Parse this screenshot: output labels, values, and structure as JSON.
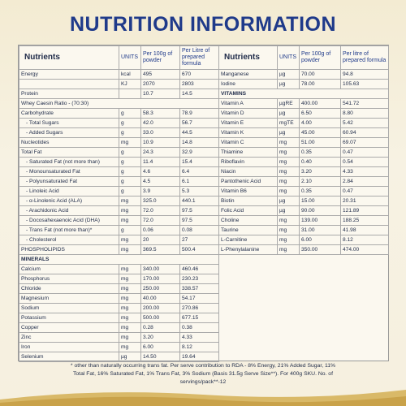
{
  "header": {
    "title": "NUTRITION INFORMATION"
  },
  "table_left": {
    "columns": [
      "Nutrients",
      "UNITS",
      "Per 100g of powder",
      "Per Litre of prepared formula"
    ],
    "rows": [
      {
        "cells": [
          "Energy",
          "kcal",
          "495",
          "670"
        ]
      },
      {
        "cells": [
          null,
          "KJ",
          "2070",
          "2803"
        ]
      },
      {
        "cells": [
          "Protein",
          null,
          "10.7",
          "14.5"
        ]
      },
      {
        "cells": [
          "Whey Caesin Ratio - (70:30)"
        ]
      },
      {
        "cells": [
          "Carbohydrate",
          "g",
          "58.3",
          "78.9"
        ]
      },
      {
        "cells": [
          "- Total Sugars",
          "g",
          "42.0",
          "56.7"
        ]
      },
      {
        "cells": [
          "- Added Sugars",
          "g",
          "33.0",
          "44.5"
        ]
      },
      {
        "cells": [
          "Nucleotides",
          "mg",
          "10.9",
          "14.8"
        ]
      },
      {
        "cells": [
          "Total Fat",
          "g",
          "24.3",
          "32.9"
        ]
      },
      {
        "cells": [
          "- Saturated Fat (not more than)",
          "g",
          "11.4",
          "15.4"
        ]
      },
      {
        "cells": [
          "- Monounsaturated Fat",
          "g",
          "4.6",
          "6.4"
        ]
      },
      {
        "cells": [
          "- Polyunsaturated Fat",
          "g",
          "4.5",
          "6.1"
        ]
      },
      {
        "cells": [
          "- Linoleic Acid",
          "g",
          "3.9",
          "5.3"
        ]
      },
      {
        "cells": [
          "- α-Linolenic Acid (ALA)",
          "mg",
          "325.0",
          "440.1"
        ]
      },
      {
        "cells": [
          "- Arachidonic Acid",
          "mg",
          "72.0",
          "97.5"
        ]
      },
      {
        "cells": [
          "- Docosahexaenoic Acid (DHA)",
          "mg",
          "72.0",
          "97.5"
        ]
      },
      {
        "cells": [
          "- Trans Fat (not more than)*",
          "g",
          "0.06",
          "0.08"
        ]
      },
      {
        "cells": [
          "- Cholesterol",
          "mg",
          "20",
          "27"
        ]
      },
      {
        "cells": [
          "PHOSPHOLIPIDS",
          "mg",
          "369.5",
          "500.4"
        ]
      },
      {
        "cells": [
          "MINERALS"
        ],
        "heading": true
      },
      {
        "cells": [
          "Calcium",
          "mg",
          "340.00",
          "460.46"
        ]
      },
      {
        "cells": [
          "Phosphorus",
          "mg",
          "170.00",
          "230.23"
        ]
      },
      {
        "cells": [
          "Chloride",
          "mg",
          "250.00",
          "338.57"
        ]
      },
      {
        "cells": [
          "Magnesium",
          "mg",
          "40.00",
          "54.17"
        ]
      },
      {
        "cells": [
          "Sodium",
          "mg",
          "200.00",
          "270.86"
        ]
      },
      {
        "cells": [
          "Potassium",
          "mg",
          "500.00",
          "677.15"
        ]
      },
      {
        "cells": [
          "Copper",
          "mg",
          "0.28",
          "0.38"
        ]
      },
      {
        "cells": [
          "Zinc",
          "mg",
          "3.20",
          "4.33"
        ]
      },
      {
        "cells": [
          "Iron",
          "mg",
          "6.00",
          "8.12"
        ]
      },
      {
        "cells": [
          "Selenium",
          "µg",
          "14.50",
          "19.64"
        ]
      }
    ]
  },
  "table_right": {
    "columns": [
      "Nutrients",
      "UNITS",
      "Per 100g of powder",
      "Per litre of prepared formula"
    ],
    "rows": [
      {
        "cells": [
          "Manganese",
          "µg",
          "70.00",
          "94.8"
        ]
      },
      {
        "cells": [
          "Iodine",
          "µg",
          "78.00",
          "105.63"
        ]
      },
      {
        "cells": [
          "VITAMINS"
        ],
        "heading": true
      },
      {
        "cells": [
          "Vitamin A",
          "µgRE",
          "400.00",
          "541.72"
        ]
      },
      {
        "cells": [
          "Vitamin D",
          "µg",
          "6.50",
          "8.80"
        ]
      },
      {
        "cells": [
          "Vitamin E",
          "mgTE",
          "4.00",
          "5.42"
        ]
      },
      {
        "cells": [
          "Vitamin K",
          "µg",
          "45.00",
          "60.94"
        ]
      },
      {
        "cells": [
          "Vitamin C",
          "mg",
          "51.00",
          "69.07"
        ]
      },
      {
        "cells": [
          "Thiamine",
          "mg",
          "0.35",
          "0.47"
        ]
      },
      {
        "cells": [
          "Riboflavin",
          "mg",
          "0.40",
          "0.54"
        ]
      },
      {
        "cells": [
          "Niacin",
          "mg",
          "3.20",
          "4.33"
        ]
      },
      {
        "cells": [
          "Pantothenic Acid",
          "mg",
          "2.10",
          "2.84"
        ]
      },
      {
        "cells": [
          "Vitamin B6",
          "mg",
          "0.35",
          "0.47"
        ]
      },
      {
        "cells": [
          "Biotin",
          "µg",
          "15.00",
          "20.31"
        ]
      },
      {
        "cells": [
          "Folic Acid",
          "µg",
          "90.00",
          "121.89"
        ]
      },
      {
        "cells": [
          "Choline",
          "mg",
          "139.00",
          "188.25"
        ]
      },
      {
        "cells": [
          "Taurine",
          "mg",
          "31.00",
          "41.98"
        ]
      },
      {
        "cells": [
          "L-Carnitine",
          "mg",
          "6.00",
          "8.12"
        ]
      },
      {
        "cells": [
          "L-Phenylalanine",
          "mg",
          "350.00",
          "474.00"
        ]
      }
    ]
  },
  "footnote": "* other than naturally occurring trans fat. Per serve contribution to RDA - 8% Energy, 21% Added Sugar, 11% Total Fat, 16% Saturated Fat, 1% Trans Fat, 3% Sodium (Basis 31.5g Serve Size**). For 400g SKU. No. of servings/pack**-12"
}
